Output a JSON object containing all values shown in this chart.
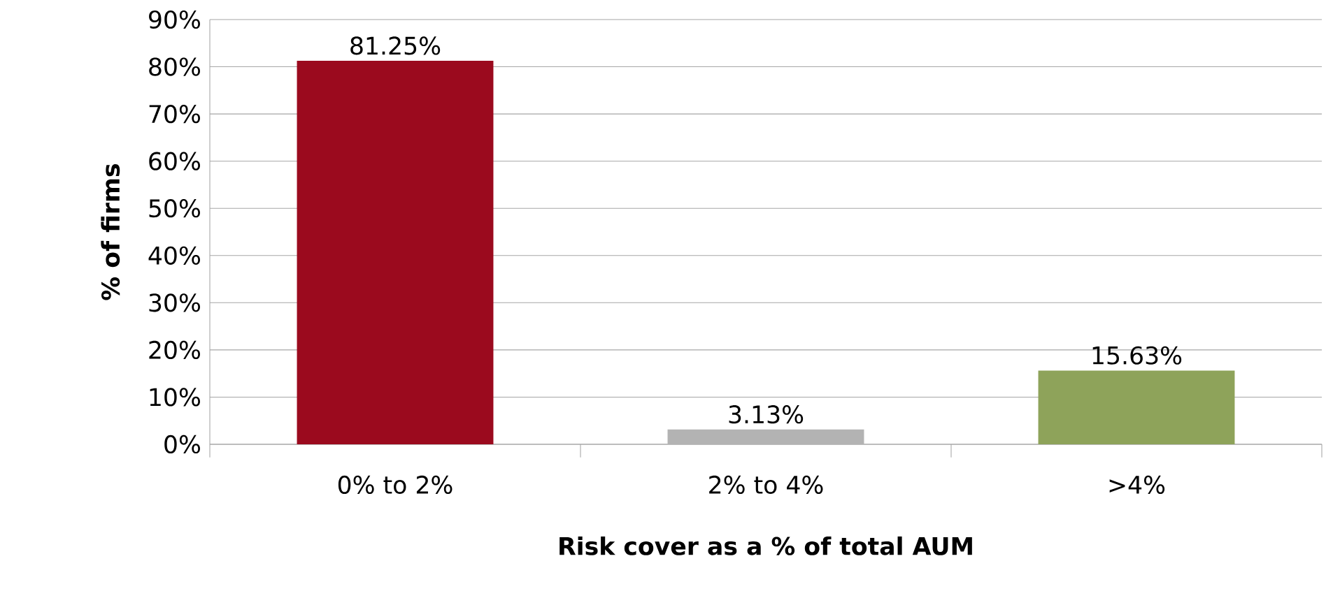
{
  "chart_data": {
    "type": "bar",
    "xlabel": "Risk cover as a % of total AUM",
    "ylabel": "% of firms",
    "categories": [
      "0% to 2%",
      "2% to 4%",
      ">4%"
    ],
    "values": [
      81.25,
      3.13,
      15.63
    ],
    "value_labels": [
      "81.25%",
      "3.13%",
      "15.63%"
    ],
    "colors": [
      "#9b0a1e",
      "#b3b3b3",
      "#8ea35a"
    ],
    "ylim": [
      0,
      90
    ],
    "yticks": [
      {
        "value": 0,
        "label": "0%"
      },
      {
        "value": 10,
        "label": "10%"
      },
      {
        "value": 20,
        "label": "20%"
      },
      {
        "value": 30,
        "label": "30%"
      },
      {
        "value": 40,
        "label": "40%"
      },
      {
        "value": 50,
        "label": "50%"
      },
      {
        "value": 60,
        "label": "60%"
      },
      {
        "value": 70,
        "label": "70%"
      },
      {
        "value": 80,
        "label": "80%"
      },
      {
        "value": 90,
        "label": "90%"
      }
    ],
    "grid": "y"
  }
}
